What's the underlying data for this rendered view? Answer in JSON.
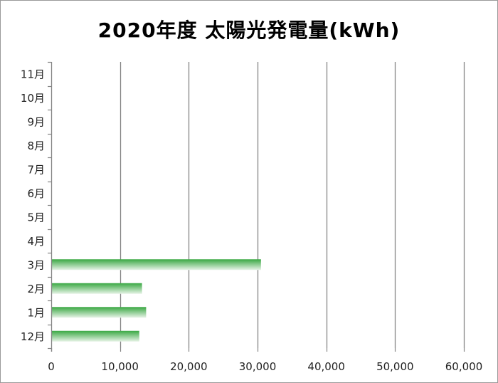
{
  "chart_data": {
    "type": "bar",
    "orientation": "horizontal",
    "title": "2020年度 太陽光発電量(kWh)",
    "xlabel": "",
    "ylabel": "",
    "categories": [
      "12月",
      "1月",
      "2月",
      "3月",
      "4月",
      "5月",
      "6月",
      "7月",
      "8月",
      "9月",
      "10月",
      "11月"
    ],
    "values": [
      12800,
      13800,
      13200,
      30500,
      null,
      null,
      null,
      null,
      null,
      null,
      null,
      null
    ],
    "xlim": [
      0,
      60000
    ],
    "xticks": [
      0,
      10000,
      20000,
      30000,
      40000,
      50000,
      60000
    ],
    "xtick_labels": [
      "0",
      "10,000",
      "20,000",
      "30,000",
      "40,000",
      "50,000",
      "60,000"
    ],
    "grid": "vertical",
    "legend": "none",
    "colors": {
      "bar_top": "#3aa843",
      "bar_bottom": "#e6f3e6",
      "grid": "#868686",
      "axis": "#868686"
    }
  }
}
